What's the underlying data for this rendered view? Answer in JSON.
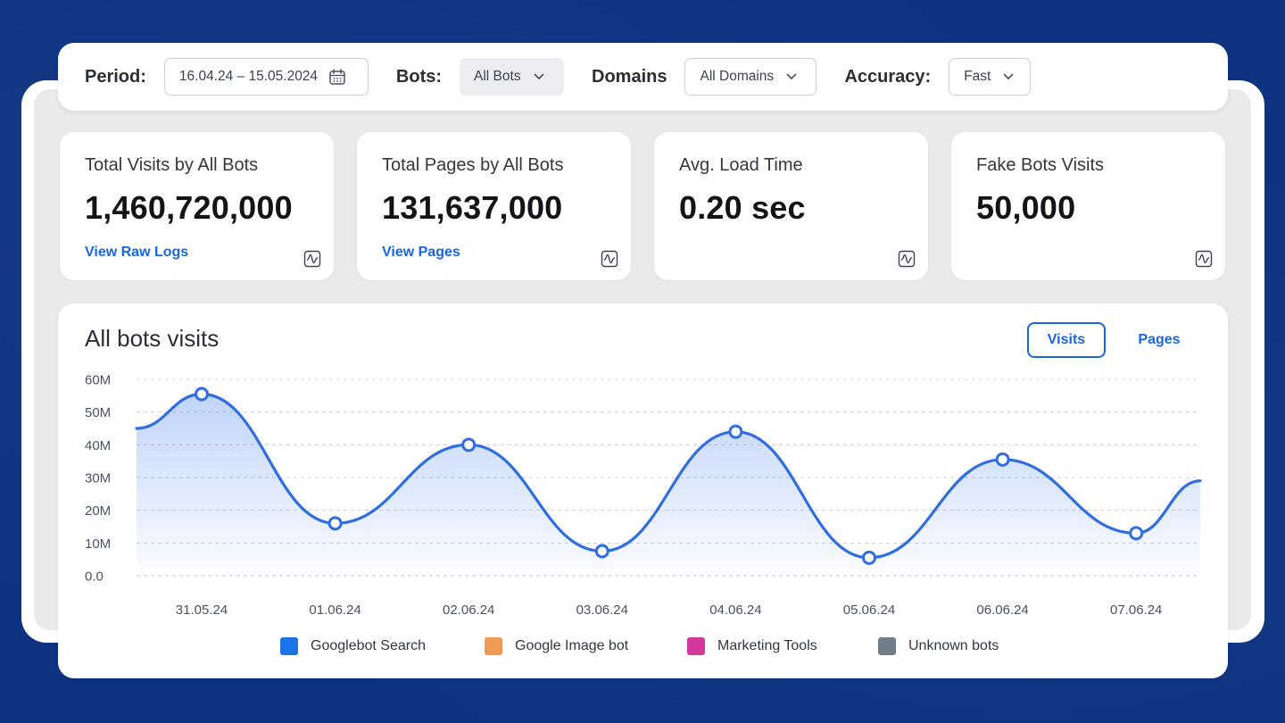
{
  "filters": {
    "period_label": "Period:",
    "period_value": "16.04.24 – 15.05.2024",
    "bots_label": "Bots:",
    "bots_value": "All Bots",
    "domains_label": "Domains",
    "domains_value": "All Domains",
    "accuracy_label": "Accuracy:",
    "accuracy_value": "Fast"
  },
  "cards": [
    {
      "title": "Total Visits by All Bots",
      "value": "1,460,720,000",
      "link": "View Raw Logs",
      "icon": "chart-wave-icon"
    },
    {
      "title": "Total Pages by All Bots",
      "value": "131,637,000",
      "link": "View Pages",
      "icon": "chart-wave-icon"
    },
    {
      "title": "Avg. Load Time",
      "value": "0.20 sec",
      "link": "",
      "icon": "chart-wave-icon"
    },
    {
      "title": "Fake Bots Visits",
      "value": "50,000",
      "link": "",
      "icon": "chart-wave-icon"
    }
  ],
  "chart_panel": {
    "title": "All bots visits",
    "tabs": [
      "Visits",
      "Pages"
    ],
    "active_tab": "Visits"
  },
  "chart_data": {
    "type": "area",
    "title": "All bots visits",
    "xlabel": "",
    "ylabel": "",
    "y_ticks": [
      "0.0",
      "10M",
      "20M",
      "30M",
      "40M",
      "50M",
      "60M"
    ],
    "ylim": [
      0,
      60
    ],
    "categories": [
      "31.05.24",
      "01.06.24",
      "02.06.24",
      "03.06.24",
      "04.06.24",
      "05.06.24",
      "06.06.24",
      "07.06.24"
    ],
    "series": [
      {
        "name": "",
        "values": [
          55.5,
          16,
          40,
          7.5,
          44,
          5.5,
          35.5,
          13
        ],
        "start_value": 45,
        "end_value": 29,
        "color": "#2f6de0"
      }
    ],
    "grid": true,
    "legend_placement": "bottom"
  },
  "legend": [
    {
      "label": "Googlebot Search",
      "color": "#1a73e8"
    },
    {
      "label": "Google Image bot",
      "color": "#ee9a55"
    },
    {
      "label": "Marketing Tools",
      "color": "#d2389a"
    },
    {
      "label": "Unknown bots",
      "color": "#727d8a"
    }
  ],
  "colors": {
    "background": "#0d3381",
    "accent": "#1a66e0"
  }
}
